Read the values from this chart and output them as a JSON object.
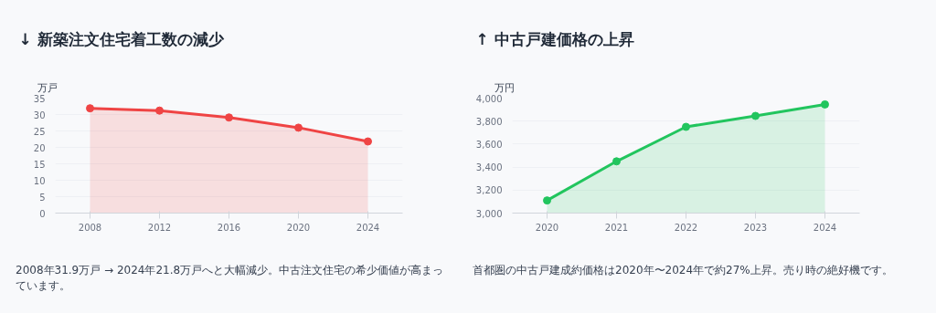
{
  "chart_data": [
    {
      "type": "area",
      "title": "↓ 新築注文住宅着工数の減少",
      "ylabel": "万戸",
      "categories": [
        "2008",
        "2012",
        "2016",
        "2020",
        "2024"
      ],
      "series": [
        {
          "color": "#ef4444",
          "values": [
            31.9,
            31.2,
            29.1,
            26.0,
            21.8
          ]
        }
      ],
      "ylim": [
        0,
        35
      ],
      "yticks": [
        0,
        5,
        10,
        15,
        20,
        25,
        30,
        35
      ],
      "grid": "y",
      "marker": "circle",
      "annotations": [
        "2008年31.9万戸 → 2024年21.8万戸へと大幅減少。中古注文住宅の希少価値が高まっています。"
      ]
    },
    {
      "type": "area",
      "title": "↑ 中古戸建価格の上昇",
      "ylabel": "万円",
      "categories": [
        "2020",
        "2021",
        "2022",
        "2023",
        "2024"
      ],
      "series": [
        {
          "color": "#22c55e",
          "values": [
            3110,
            3450,
            3750,
            3845,
            3945
          ]
        }
      ],
      "ylim": [
        3000,
        4000
      ],
      "yticks": [
        {
          "value": 3000,
          "label": "3,000"
        },
        {
          "value": 3200,
          "label": "3,200"
        },
        {
          "value": 3400,
          "label": "3,400"
        },
        {
          "value": 3600,
          "label": "3,600"
        },
        {
          "value": 3800,
          "label": "3,800"
        },
        {
          "value": 4000,
          "label": "4,000"
        }
      ],
      "grid": "y",
      "marker": "circle",
      "annotations": [
        "首都圏の中古戸建成約価格は2020年〜2024年で約27%上昇。売り時の絶好機です。"
      ]
    }
  ]
}
